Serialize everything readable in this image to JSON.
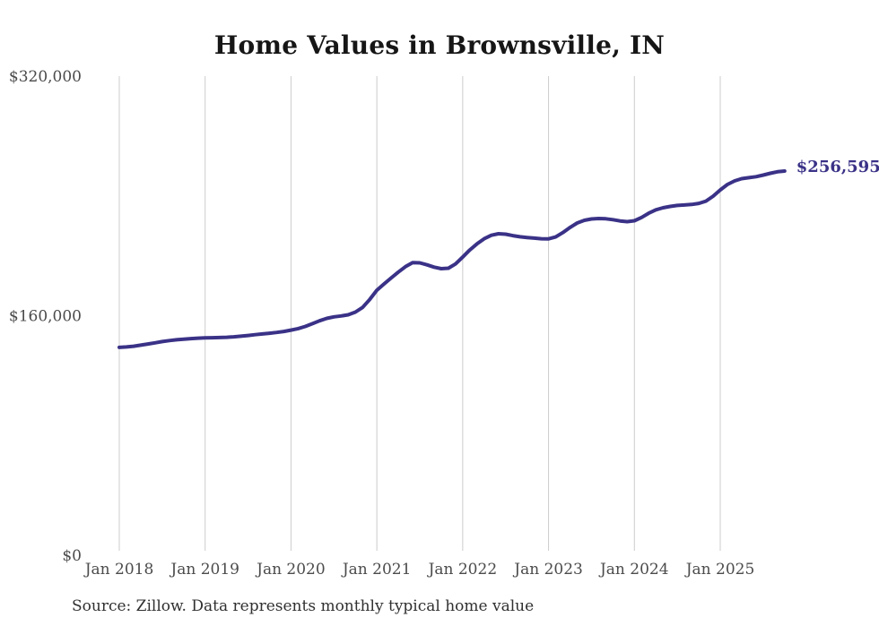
{
  "chart_data": {
    "type": "line",
    "title": "Home Values in Brownsville, IN",
    "source_note": "Source: Zillow. Data represents monthly typical home value",
    "x_start": "Jan 2018",
    "x_end": "Oct 2025",
    "frequency": "monthly",
    "x_tick_labels": [
      "Jan 2018",
      "Jan 2019",
      "Jan 2020",
      "Jan 2021",
      "Jan 2022",
      "Jan 2023",
      "Jan 2024",
      "Jan 2025"
    ],
    "y_ticks": [
      {
        "label": "$0",
        "value": 0
      },
      {
        "label": "$160,000",
        "value": 160000
      },
      {
        "label": "$320,000",
        "value": 320000
      }
    ],
    "ylim": [
      0,
      320000
    ],
    "grid": "vertical-only",
    "legend": "none",
    "end_label": "$256,595",
    "latest_value": 256595,
    "line_color": "#3a3287",
    "grid_color": "#cccccc",
    "axis_text_color": "#4b4b4b",
    "values": [
      138800,
      139100,
      139600,
      140300,
      141100,
      141900,
      142700,
      143400,
      143900,
      144300,
      144700,
      145000,
      145200,
      145300,
      145400,
      145600,
      145900,
      146300,
      146800,
      147300,
      147800,
      148300,
      148800,
      149500,
      150400,
      151400,
      152800,
      154700,
      156600,
      158200,
      159200,
      159800,
      160600,
      162400,
      165500,
      170800,
      177000,
      181200,
      185200,
      189100,
      192700,
      195400,
      195300,
      194000,
      192400,
      191400,
      191700,
      194600,
      199200,
      203900,
      208000,
      211400,
      213700,
      214700,
      214400,
      213500,
      212700,
      212200,
      211800,
      211400,
      211300,
      212600,
      215500,
      218900,
      221900,
      223700,
      224600,
      224900,
      224700,
      224100,
      223300,
      222800,
      223400,
      225600,
      228400,
      230700,
      232100,
      233000,
      233600,
      233900,
      234300,
      235000,
      236500,
      239800,
      244000,
      247600,
      250000,
      251500,
      252200,
      252800,
      253900,
      255100,
      256100,
      256595
    ]
  }
}
